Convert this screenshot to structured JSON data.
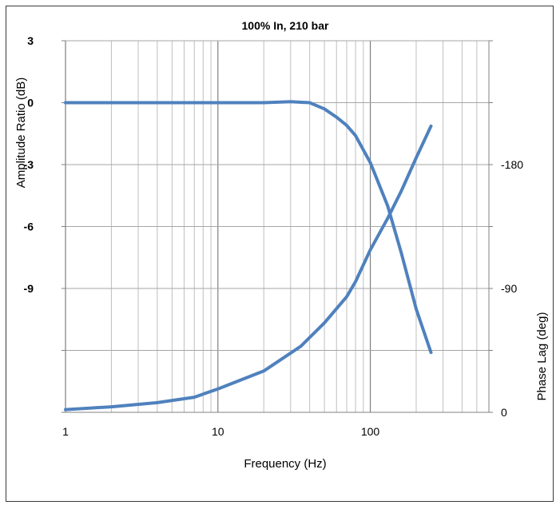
{
  "chart_data": {
    "type": "line",
    "title": "100% In, 210 bar",
    "xlabel": "Frequency (Hz)",
    "ylabel_left": "Amplitude Ratio (dB)",
    "ylabel_right": "Phase Lag (deg)",
    "x_scale": "log",
    "xlim": [
      1,
      600
    ],
    "x_ticks": [
      1,
      10,
      100
    ],
    "x_tick_labels": [
      "1",
      "10",
      "100"
    ],
    "ylim_left": [
      -15,
      3
    ],
    "y_ticks_left": [
      3,
      0,
      -3,
      -6,
      -9
    ],
    "y_tick_labels_left": [
      "3",
      "0",
      "-3",
      "-6",
      "-9"
    ],
    "ylim_right": [
      0,
      270
    ],
    "y_ticks_right": [
      0,
      90,
      180
    ],
    "y_tick_labels_right": [
      "0",
      "-90",
      "-180"
    ],
    "grid": true,
    "series": [
      {
        "axis": "left",
        "color": "#4f81bd",
        "x": [
          1,
          5,
          10,
          20,
          30,
          40,
          50,
          60,
          70,
          80,
          100,
          130,
          160,
          200,
          250
        ],
        "y": [
          0,
          0,
          0,
          0,
          0.05,
          0.0,
          -0.3,
          -0.7,
          -1.1,
          -1.6,
          -2.9,
          -5.0,
          -7.3,
          -10.0,
          -12.1
        ]
      },
      {
        "axis": "right",
        "color": "#4f81bd",
        "x": [
          1,
          2,
          4,
          7,
          10,
          20,
          35,
          50,
          70,
          80,
          100,
          130,
          160,
          200,
          250
        ],
        "y": [
          2,
          4,
          7,
          11,
          17,
          30,
          48,
          65,
          84,
          95,
          118,
          141,
          161,
          185,
          208
        ]
      }
    ]
  }
}
